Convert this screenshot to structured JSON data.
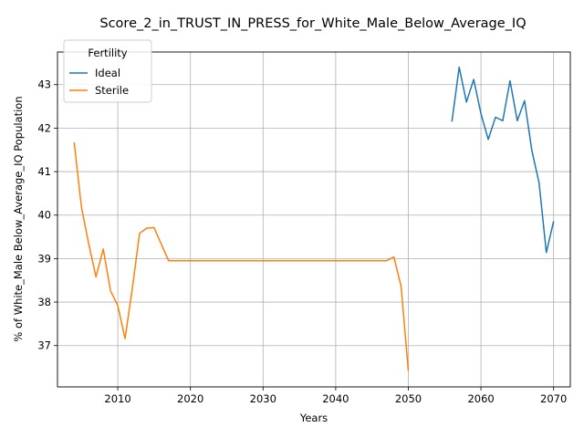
{
  "chart_data": {
    "type": "line",
    "title": "Score_2_in_TRUST_IN_PRESS_for_White_Male_Below_Average_IQ",
    "xlabel": "Years",
    "ylabel": "% of White_Male Below_Average_IQ Population",
    "xlim": [
      2001.7,
      2072.3
    ],
    "ylim": [
      36.05,
      43.75
    ],
    "xticks": [
      2010,
      2020,
      2030,
      2040,
      2050,
      2060,
      2070
    ],
    "yticks": [
      37,
      38,
      39,
      40,
      41,
      42,
      43
    ],
    "grid": true,
    "legend": {
      "title": "Fertility",
      "placement": "top-left"
    },
    "series": [
      {
        "name": "Ideal",
        "color": "#1f77b4",
        "x": [
          2056,
          2057,
          2058,
          2059,
          2060,
          2061,
          2062,
          2063,
          2064,
          2065,
          2066,
          2067,
          2068,
          2069,
          2070
        ],
        "y": [
          42.15,
          43.4,
          42.6,
          43.12,
          42.33,
          41.74,
          42.25,
          42.17,
          43.09,
          42.17,
          42.63,
          41.49,
          40.74,
          39.14,
          39.86
        ]
      },
      {
        "name": "Sterile",
        "color": "#ff7f0e",
        "x": [
          2004,
          2005,
          2006,
          2007,
          2008,
          2009,
          2010,
          2011,
          2012,
          2013,
          2014,
          2015,
          2016,
          2017,
          2018,
          2020,
          2030,
          2040,
          2047,
          2048,
          2049,
          2050
        ],
        "y": [
          41.67,
          40.18,
          39.34,
          38.58,
          39.22,
          38.26,
          37.92,
          37.16,
          38.31,
          39.58,
          39.7,
          39.71,
          39.33,
          38.95,
          38.95,
          38.95,
          38.95,
          38.95,
          38.95,
          39.04,
          38.37,
          36.42
        ]
      }
    ]
  }
}
